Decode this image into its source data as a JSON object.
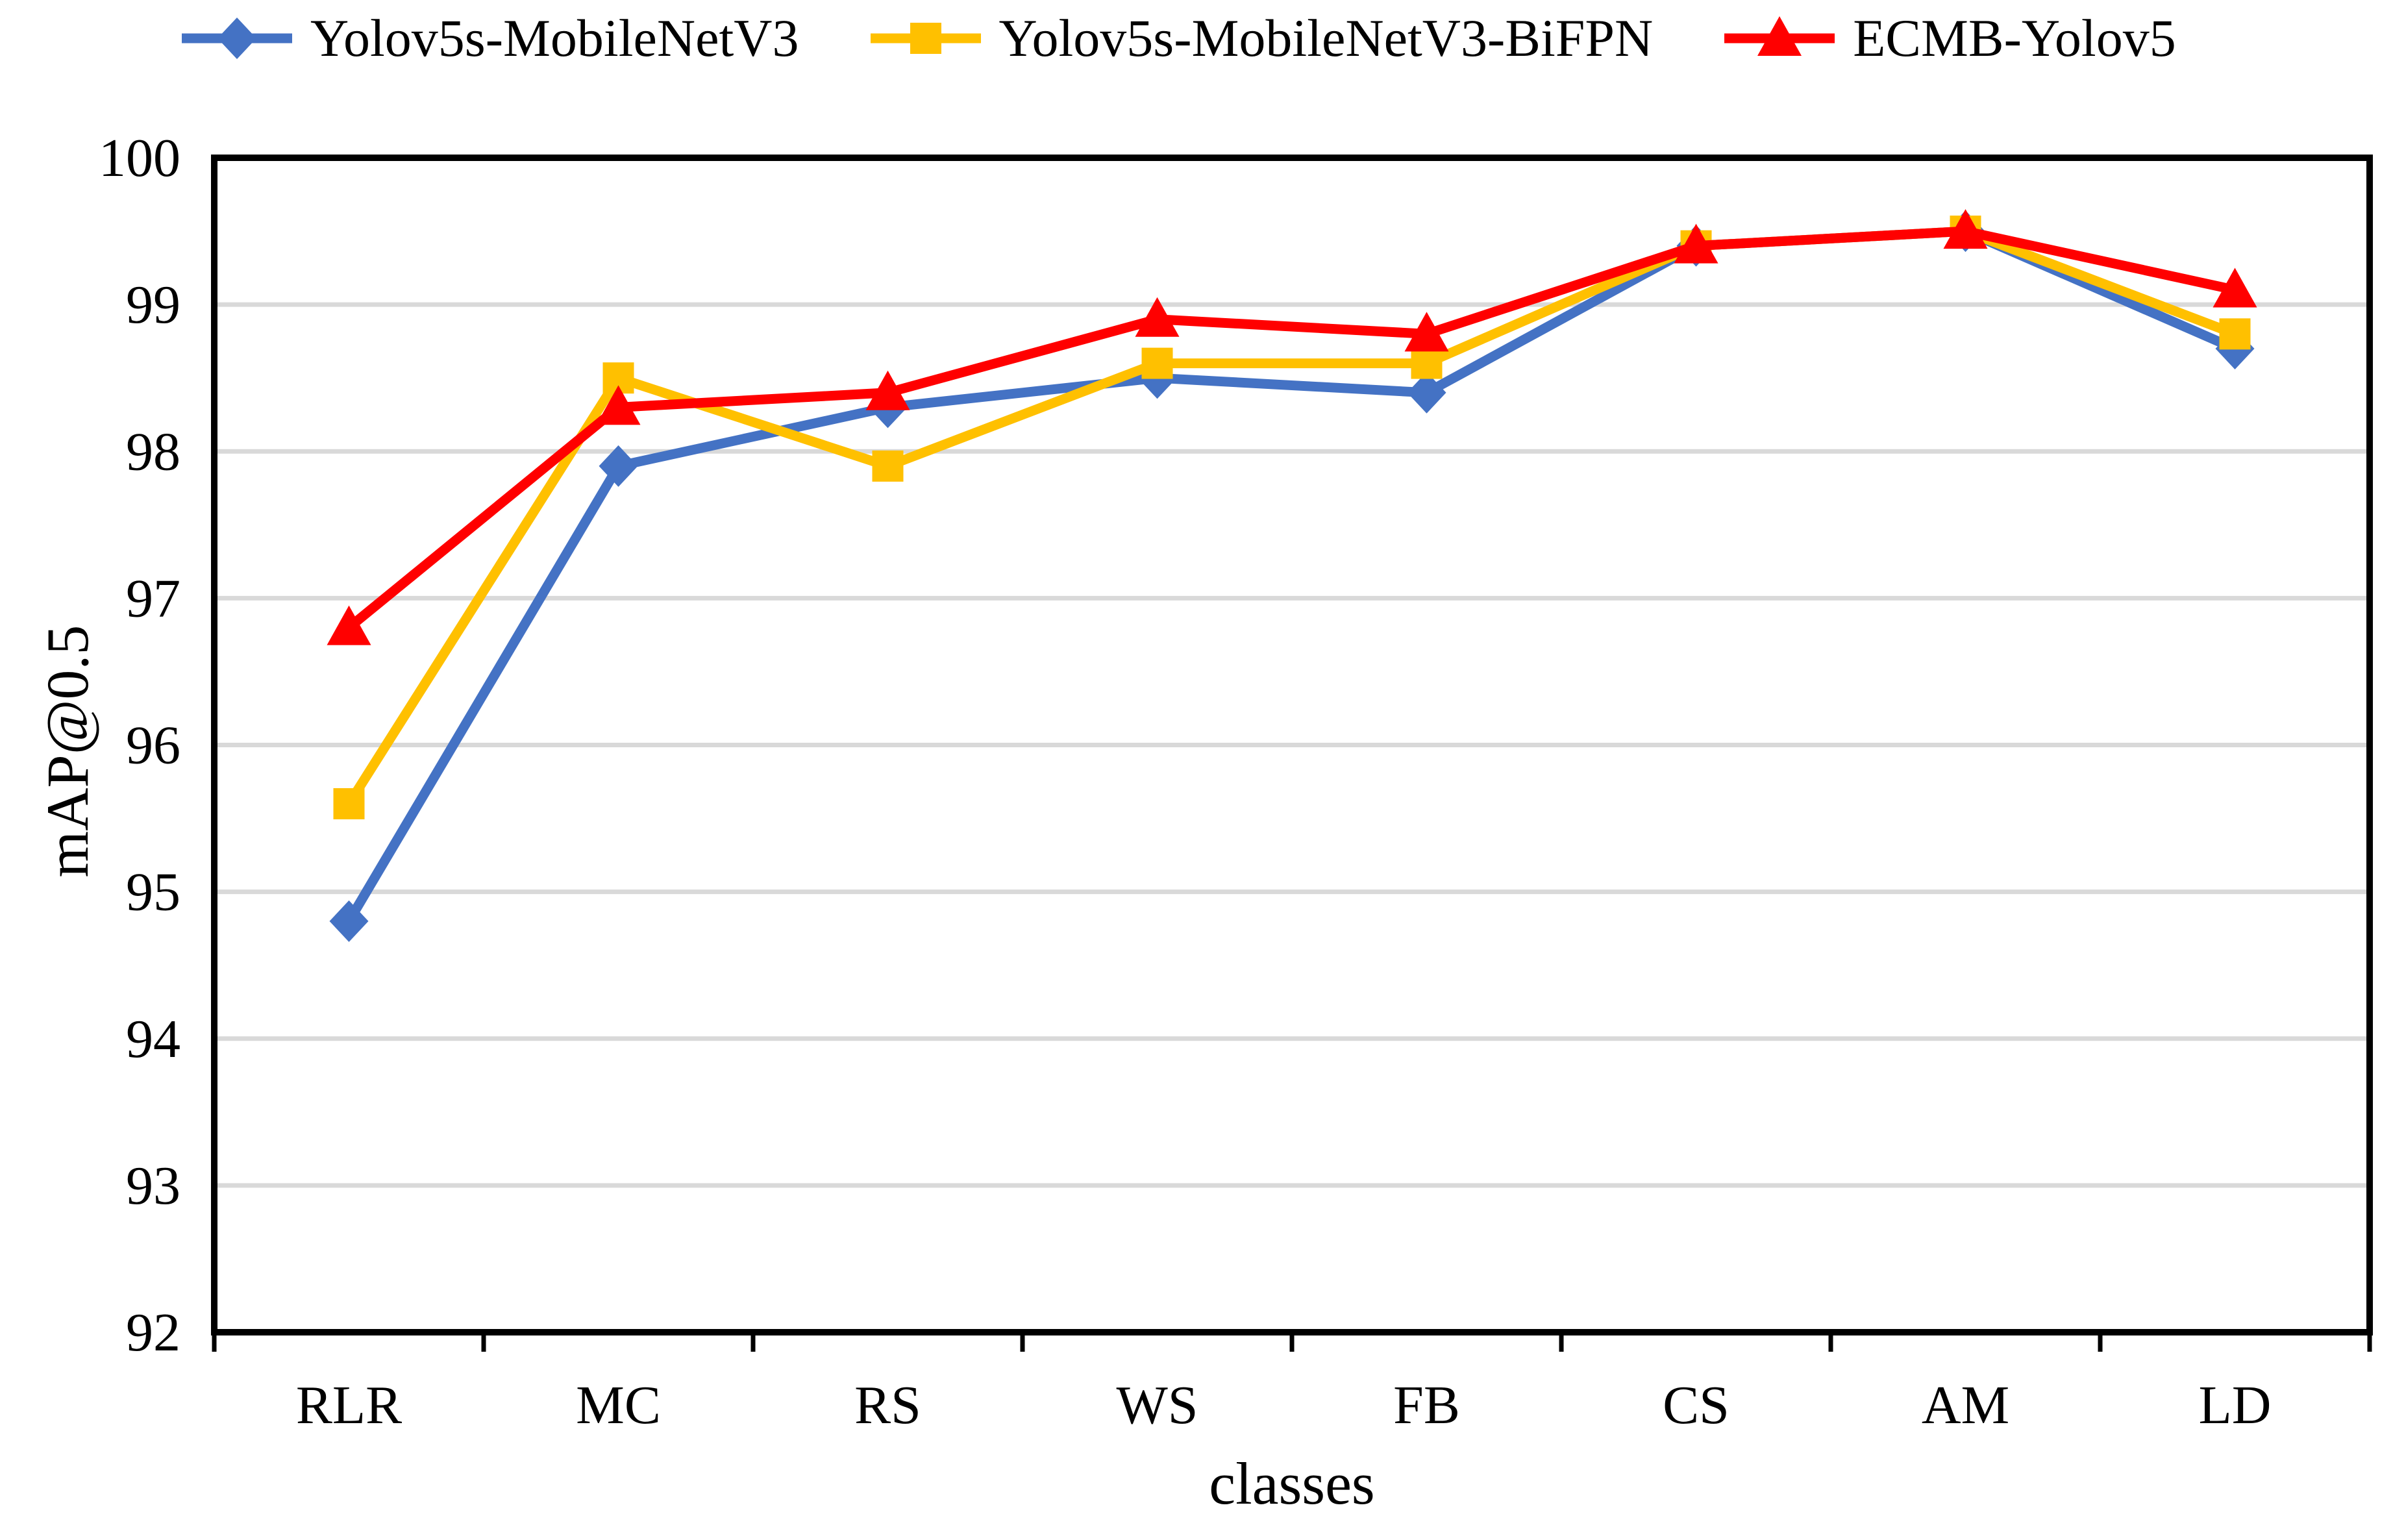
{
  "chart_data": {
    "type": "line",
    "title": "",
    "xlabel": "classes",
    "ylabel": "mAP@0.5",
    "categories": [
      "RLR",
      "MC",
      "RS",
      "WS",
      "FB",
      "CS",
      "AM",
      "LD"
    ],
    "series": [
      {
        "name": "Yolov5s-MobileNetV3",
        "color": "#4472C4",
        "marker": "diamond",
        "values": [
          94.8,
          97.9,
          98.3,
          98.5,
          98.4,
          99.4,
          99.5,
          98.7
        ]
      },
      {
        "name": "Yolov5s-MobileNetV3-BiFPN",
        "color": "#FFC000",
        "marker": "square",
        "values": [
          95.6,
          98.5,
          97.9,
          98.6,
          98.6,
          99.4,
          99.5,
          98.8
        ]
      },
      {
        "name": "ECMB-Yolov5",
        "color": "#FF0000",
        "marker": "triangle",
        "values": [
          96.8,
          98.3,
          98.4,
          98.9,
          98.8,
          99.4,
          99.5,
          99.1
        ]
      }
    ],
    "ylim": [
      92,
      100
    ],
    "ytick_step": 1,
    "y_tick_labels": [
      "92",
      "93",
      "94",
      "95",
      "96",
      "97",
      "98",
      "99",
      "100"
    ],
    "grid": true,
    "gridline_color": "#D9D9D9",
    "axis_color": "#000000",
    "legend_position": "top"
  }
}
